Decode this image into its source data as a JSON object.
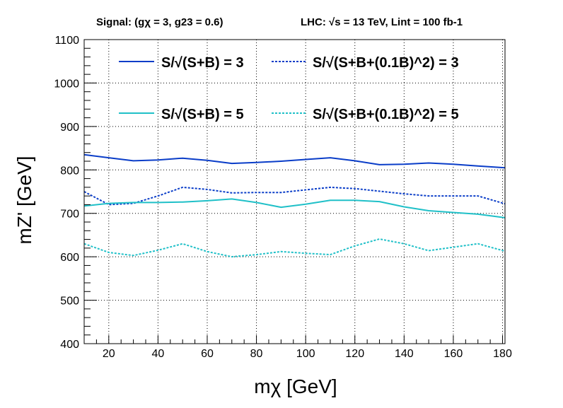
{
  "chart_data": {
    "type": "line",
    "header_left": "Signal: (gχ = 3, g23 = 0.6)",
    "header_right": "LHC: √s = 13 TeV, Lint = 100 fb-1",
    "xlabel": "mχ [GeV]",
    "ylabel": "mZ' [GeV]",
    "xlim": [
      10,
      181
    ],
    "ylim": [
      400,
      1100
    ],
    "xticks": [
      20,
      40,
      60,
      80,
      100,
      120,
      140,
      160,
      180
    ],
    "yticks": [
      400,
      500,
      600,
      700,
      800,
      900,
      1000,
      1100
    ],
    "x": [
      10,
      20,
      30,
      40,
      50,
      60,
      70,
      80,
      90,
      100,
      110,
      120,
      130,
      140,
      150,
      160,
      170,
      181
    ],
    "series": [
      {
        "name": "S/√(S+B) = 3",
        "color": "#0a3dc8",
        "dash": "solid",
        "values": [
          835,
          828,
          821,
          823,
          827,
          822,
          815,
          817,
          820,
          824,
          828,
          821,
          812,
          813,
          816,
          813,
          809,
          805
        ]
      },
      {
        "name": "S/√(S+B+(0.1B)^2) = 3",
        "color": "#0a3dc8",
        "dash": "dotted",
        "values": [
          750,
          720,
          723,
          740,
          760,
          755,
          747,
          748,
          748,
          754,
          760,
          757,
          751,
          745,
          740,
          740,
          740,
          722
        ]
      },
      {
        "name": "S/√(S+B) = 5",
        "color": "#20c0c8",
        "dash": "solid",
        "values": [
          717,
          723,
          725,
          725,
          726,
          729,
          733,
          725,
          714,
          721,
          730,
          730,
          727,
          715,
          706,
          702,
          698,
          690
        ]
      },
      {
        "name": "S/√(S+B+(0.1B)^2) = 5",
        "color": "#20c0c8",
        "dash": "dotted",
        "values": [
          630,
          610,
          603,
          615,
          630,
          612,
          600,
          605,
          612,
          608,
          605,
          625,
          641,
          630,
          614,
          622,
          630,
          613
        ]
      }
    ],
    "grid": true,
    "legend_position": "top"
  }
}
